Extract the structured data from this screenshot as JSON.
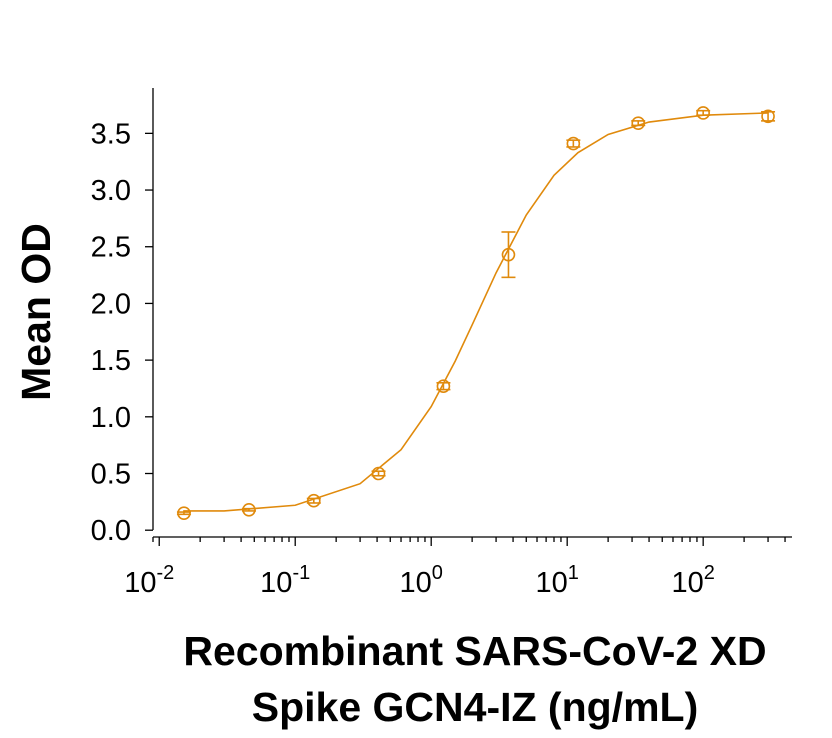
{
  "chart_data": {
    "type": "scatter",
    "ylabel": "Mean OD",
    "xlabel": [
      "Recombinant SARS-CoV-2 XD",
      "Spike GCN4-IZ (ng/mL)"
    ],
    "xscale": "log",
    "xlim": [
      0.009,
      450
    ],
    "ylim": [
      -0.06,
      3.9
    ],
    "xticks": [
      {
        "value": 0.01,
        "label": "10",
        "exponent": "-2"
      },
      {
        "value": 0.1,
        "label": "10",
        "exponent": "-1"
      },
      {
        "value": 1,
        "label": "10",
        "exponent": "0"
      },
      {
        "value": 10,
        "label": "10",
        "exponent": "1"
      },
      {
        "value": 100,
        "label": "10",
        "exponent": "2"
      }
    ],
    "yticks": [
      {
        "value": 0,
        "label": "0.0"
      },
      0.5,
      {
        "value": 1,
        "label": "1.0"
      },
      1.5,
      {
        "value": 2,
        "label": "2.0"
      },
      2.5,
      {
        "value": 3,
        "label": "3.0"
      },
      3.5
    ],
    "series": [
      {
        "color": "#e08a0c",
        "x": [
          0.0152,
          0.0457,
          0.137,
          0.41,
          1.23,
          3.7,
          11.1,
          33.3,
          100,
          300
        ],
        "values": [
          0.15,
          0.18,
          0.26,
          0.5,
          1.27,
          2.43,
          3.41,
          3.59,
          3.68,
          3.65
        ],
        "errors": [
          0.01,
          0.01,
          0.02,
          0.02,
          0.03,
          0.2,
          0.03,
          0.02,
          0.02,
          0.04
        ]
      }
    ],
    "fit": {
      "color": "#e08a0c",
      "x": [
        0.015,
        0.03,
        0.1,
        0.3,
        0.6,
        1,
        1.5,
        2,
        3,
        5,
        8,
        12,
        20,
        40,
        100,
        300
      ],
      "values": [
        0.17,
        0.17,
        0.22,
        0.41,
        0.71,
        1.09,
        1.49,
        1.81,
        2.27,
        2.78,
        3.13,
        3.33,
        3.49,
        3.6,
        3.66,
        3.68
      ]
    }
  }
}
